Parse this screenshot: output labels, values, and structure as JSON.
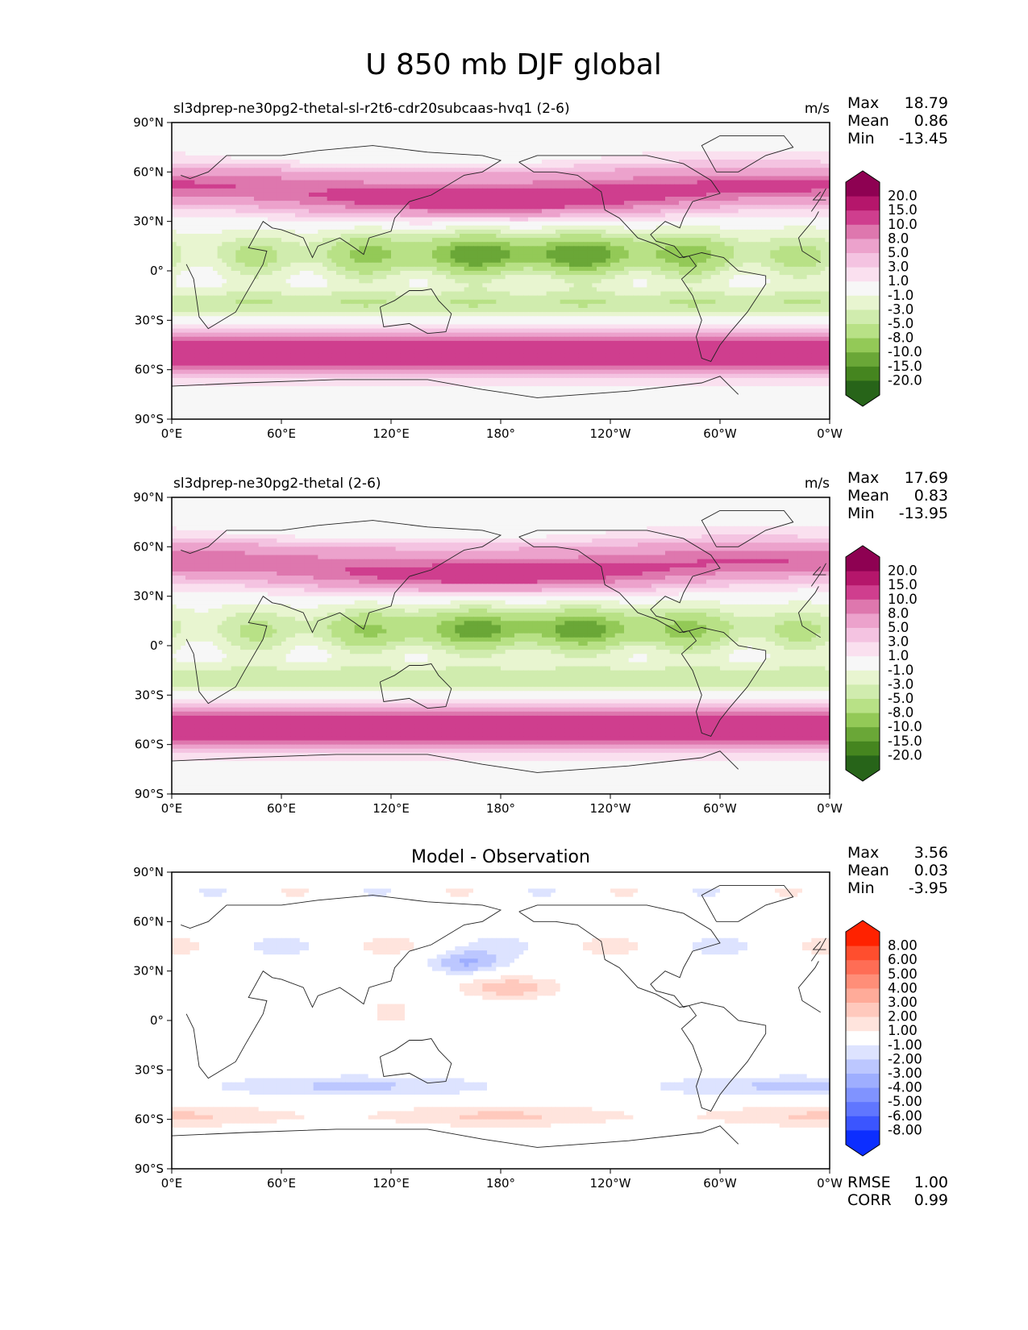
{
  "figure": {
    "title": "U 850 mb DJF global",
    "x_tick_labels": [
      "0°E",
      "60°E",
      "120°E",
      "180°",
      "120°W",
      "60°W",
      "0°W"
    ],
    "y_tick_labels": [
      "90°N",
      "60°N",
      "30°N",
      "0°",
      "30°S",
      "60°S",
      "90°S"
    ]
  },
  "chart_data": [
    {
      "type": "heatmap",
      "title": "sl3dprep-ne30pg2-thetal-sl-r2t6-cdr20subcaas-hvq1 (2-6)",
      "units": "m/s",
      "stats": {
        "max_label": "Max",
        "max": "18.79",
        "mean_label": "Mean",
        "mean": "0.86",
        "min_label": "Min",
        "min": "-13.45"
      },
      "colorbar_levels": [
        "20.0",
        "15.0",
        "10.0",
        "8.0",
        "5.0",
        "3.0",
        "1.0",
        "-1.0",
        "-3.0",
        "-5.0",
        "-8.0",
        "-10.0",
        "-15.0",
        "-20.0"
      ],
      "colorbar_colors": [
        "#8e0152",
        "#b5166b",
        "#cf3e8e",
        "#de77ae",
        "#eca2cc",
        "#f4c3e1",
        "#fae0ef",
        "#f7f7f7",
        "#e8f5d0",
        "#d0ecae",
        "#b8e186",
        "#93c957",
        "#6aa737",
        "#45851f",
        "#276419"
      ],
      "variant": 1
    },
    {
      "type": "heatmap",
      "title": "sl3dprep-ne30pg2-thetal (2-6)",
      "units": "m/s",
      "stats": {
        "max_label": "Max",
        "max": "17.69",
        "mean_label": "Mean",
        "mean": "0.83",
        "min_label": "Min",
        "min": "-13.95"
      },
      "colorbar_levels": [
        "20.0",
        "15.0",
        "10.0",
        "8.0",
        "5.0",
        "3.0",
        "1.0",
        "-1.0",
        "-3.0",
        "-5.0",
        "-8.0",
        "-10.0",
        "-15.0",
        "-20.0"
      ],
      "colorbar_colors": [
        "#8e0152",
        "#b5166b",
        "#cf3e8e",
        "#de77ae",
        "#eca2cc",
        "#f4c3e1",
        "#fae0ef",
        "#f7f7f7",
        "#e8f5d0",
        "#d0ecae",
        "#b8e186",
        "#93c957",
        "#6aa737",
        "#45851f",
        "#276419"
      ],
      "variant": 2
    },
    {
      "type": "heatmap",
      "title": "Model - Observation",
      "units": "",
      "stats": {
        "max_label": "Max",
        "max": "3.56",
        "mean_label": "Mean",
        "mean": "0.03",
        "min_label": "Min",
        "min": "-3.95"
      },
      "colorbar_levels": [
        "8.00",
        "6.00",
        "5.00",
        "4.00",
        "3.00",
        "2.00",
        "1.00",
        "-1.00",
        "-2.00",
        "-3.00",
        "-4.00",
        "-5.00",
        "-6.00",
        "-8.00"
      ],
      "colorbar_colors": [
        "#ff2200",
        "#ff4e2e",
        "#ff6d55",
        "#ff8e78",
        "#ffab99",
        "#ffc9bd",
        "#ffe4dd",
        "#ffffff",
        "#dde3ff",
        "#bcc7ff",
        "#9eaeff",
        "#8093ff",
        "#6076ff",
        "#3b55ff",
        "#0c2eff"
      ],
      "extra_stats": {
        "rmse_label": "RMSE",
        "rmse": "1.00",
        "corr_label": "CORR",
        "corr": "0.99"
      },
      "variant": 3
    }
  ]
}
